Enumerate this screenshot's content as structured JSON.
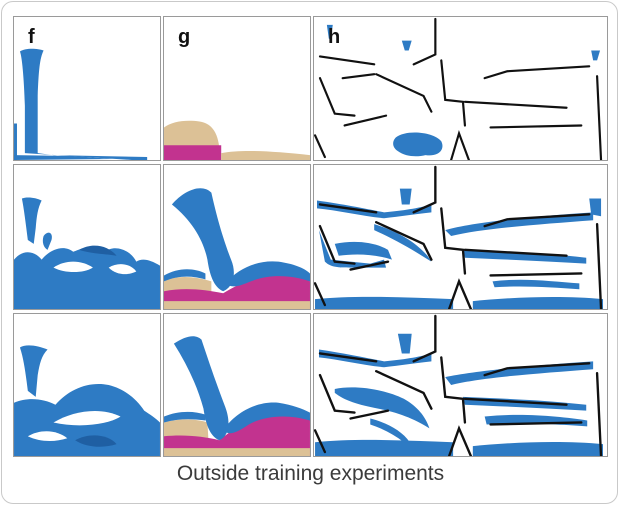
{
  "figure": {
    "column_labels": [
      "f",
      "g",
      "h"
    ],
    "caption": "Outside training experiments"
  },
  "colors": {
    "water": "#2e7bc4",
    "water_dark": "#1f5fa3",
    "sand": "#dcc196",
    "goo": "#c2338f",
    "wall": "#111111",
    "panel_border": "#9a9a9a"
  }
}
